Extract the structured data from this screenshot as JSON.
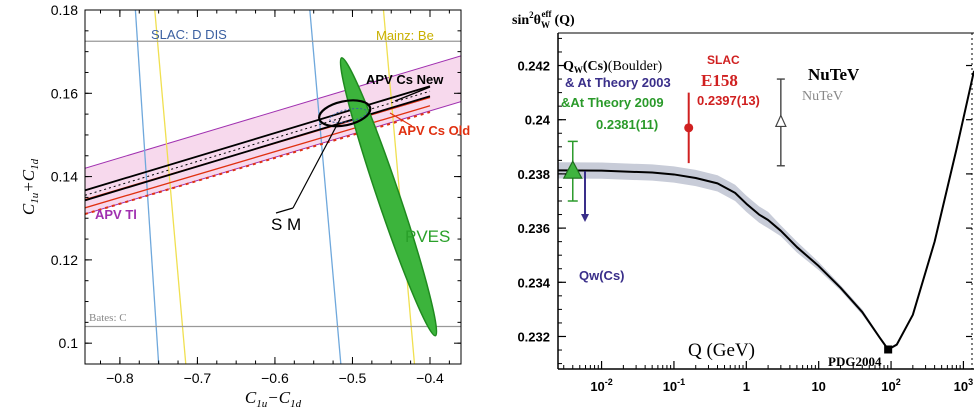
{
  "chart_data": [
    {
      "type": "line",
      "xlabel_main": "C",
      "xlabel_sub1": "1u",
      "xlabel_minus": "−C",
      "xlabel_sub2": "1d",
      "ylabel_main": "C",
      "ylabel_sub1": "1u",
      "ylabel_plus": "+C",
      "ylabel_sub2": "1d",
      "xlim": [
        -0.845,
        -0.36
      ],
      "ylim": [
        0.095,
        0.18
      ],
      "x_ticks": [
        -0.8,
        -0.7,
        -0.6,
        -0.5,
        -0.4
      ],
      "x_tick_labels": [
        "−0.8",
        "−0.7",
        "−0.6",
        "−0.5",
        "−0.4"
      ],
      "y_ticks": [
        0.1,
        0.12,
        0.14,
        0.16,
        0.18
      ],
      "y_tick_labels": [
        "0.1",
        "0.12",
        "0.14",
        "0.16",
        "0.18"
      ],
      "annotations": [
        {
          "text": "SLAC: D DIS",
          "color": "#3a5fa0"
        },
        {
          "text": "Mainz: Be",
          "color": "#c8b000"
        },
        {
          "text": "APV Cs New",
          "color": "#000000"
        },
        {
          "text": "APV Cs Old",
          "color": "#e03010"
        },
        {
          "text": "S M",
          "color": "#000000"
        },
        {
          "text": "PVES",
          "color": "#2aa02a"
        },
        {
          "text": "APV Tl",
          "color": "#a030b0"
        },
        {
          "text": "Bates: C",
          "color": "#888888"
        }
      ],
      "constraint_lines": [
        {
          "name": "SLAC: D DIS",
          "color": "#6fa8dc",
          "lines": [
            [
              [
                -0.78,
                0.18
              ],
              [
                -0.75,
                0.095
              ]
            ],
            [
              [
                -0.555,
                0.18
              ],
              [
                -0.515,
                0.095
              ]
            ]
          ]
        },
        {
          "name": "Mainz: Be",
          "color": "#f0e050",
          "lines": [
            [
              [
                -0.755,
                0.18
              ],
              [
                -0.715,
                0.095
              ]
            ],
            [
              [
                -0.46,
                0.18
              ],
              [
                -0.42,
                0.095
              ]
            ]
          ]
        },
        {
          "name": "Bates: C",
          "color": "#999999",
          "lines": [
            [
              [
                -0.845,
                0.1725
              ],
              [
                -0.36,
                0.1725
              ]
            ],
            [
              [
                -0.845,
                0.104
              ],
              [
                -0.36,
                0.104
              ]
            ]
          ]
        }
      ],
      "apv_bands": [
        {
          "name": "APV Tl band",
          "color": "#a030b0",
          "fill": "#f5cfe8",
          "center": [
            [
              -0.845,
              0.1365
            ],
            [
              -0.36,
              0.1635
            ]
          ],
          "half_width": 0.0055
        },
        {
          "name": "APV Cs New",
          "color": "#000000",
          "center": [
            [
              -0.845,
              0.1355
            ],
            [
              -0.4,
              0.1605
            ]
          ],
          "half_width": 0.0012
        },
        {
          "name": "APV Cs Old",
          "color": "#e03010",
          "center": [
            [
              -0.845,
              0.1335
            ],
            [
              -0.4,
              0.158
            ]
          ],
          "half_width": 0.001
        }
      ],
      "standard_model_point": [
        -0.514,
        0.1545
      ],
      "pves_ellipse": {
        "center": [
          -0.471,
          0.1328
        ],
        "semi_axis_long": 0.035,
        "semi_axis_short": 0.0022,
        "color": "#3cb43c"
      },
      "combined_ellipse": {
        "center": [
          -0.51,
          0.1552
        ],
        "rx": 0.022,
        "ry": 0.0028,
        "color": "#000000"
      }
    },
    {
      "type": "line",
      "ylabel": "sin²θ_W^eff (Q)",
      "ylabel_main": "sin",
      "ylabel_sup": "2",
      "ylabel_theta": "θ",
      "ylabel_sub": "W",
      "ylabel_eff": "eff",
      "ylabel_arg": "(Q)",
      "xlabel": "Q (GeV)",
      "xscale": "log",
      "xlim": [
        0.0025,
        1400
      ],
      "ylim": [
        0.2308,
        0.2432
      ],
      "x_tick_labels": [
        {
          "base": "10",
          "exp": "-2"
        },
        {
          "base": "10",
          "exp": "-1"
        },
        {
          "base": "1",
          "exp": ""
        },
        {
          "base": "10",
          "exp": ""
        },
        {
          "base": "10",
          "exp": "2"
        },
        {
          "base": "10",
          "exp": "3"
        }
      ],
      "x_ticks": [
        0.01,
        0.1,
        1,
        10,
        100,
        1000
      ],
      "y_ticks": [
        0.232,
        0.234,
        0.236,
        0.238,
        0.24,
        0.242
      ],
      "y_tick_labels": [
        "0.232",
        "0.234",
        "0.236",
        "0.238",
        "0.24",
        "0.242"
      ],
      "theory_curve": {
        "x": [
          0.0025,
          0.01,
          0.05,
          0.1,
          0.2,
          0.4,
          0.7,
          1.0,
          1.5,
          2.0,
          3,
          5,
          10,
          20,
          40,
          70,
          91.2,
          120,
          200,
          400,
          800,
          1400
        ],
        "y": [
          0.23813,
          0.23812,
          0.23805,
          0.23798,
          0.23785,
          0.23765,
          0.2373,
          0.2369,
          0.2365,
          0.2363,
          0.2359,
          0.2353,
          0.2346,
          0.2338,
          0.2329,
          0.23195,
          0.23152,
          0.2317,
          0.2328,
          0.2355,
          0.2389,
          0.2418
        ],
        "band_halfwidth": [
          0.0003,
          0.0003,
          0.0003,
          0.0003,
          0.0003,
          0.0003,
          0.0003,
          0.0003,
          0.0003,
          0.0003,
          0.0002,
          0.0002,
          0.00015,
          0.0001,
          0.0001,
          5e-05,
          5e-05,
          5e-05,
          5e-05,
          5e-05,
          5e-05,
          5e-05
        ],
        "color": "#000000",
        "band_color": "#c8ccd8"
      },
      "measurements": [
        {
          "label": "Q_W(Cs)(Boulder)",
          "x": 0.004,
          "y": 0.2381,
          "err": 0.0011,
          "color": "#2a9a2a",
          "marker": "triangle"
        },
        {
          "label": "Qw(Cs)",
          "x": 0.0059,
          "y_top": 0.2381,
          "y_bottom": 0.2363,
          "color": "#3a2f8a",
          "marker": "arrow-down"
        },
        {
          "label": "E158",
          "x": 0.16,
          "y": 0.2397,
          "err": 0.0013,
          "color": "#d02020",
          "marker": "circle"
        },
        {
          "label": "NuTeV",
          "x": 3.0,
          "y": 0.2399,
          "err": 0.0016,
          "color": "#444444",
          "marker": "arrow-up"
        },
        {
          "label": "PDG2004",
          "x": 91.2,
          "y": 0.23152,
          "color": "#000000",
          "marker": "square"
        }
      ],
      "annotations": [
        {
          "text": "(Boulder)",
          "color": "#000000"
        },
        {
          "text": "& At Theory 2003",
          "color": "#3a2f8a"
        },
        {
          "text": "&At Theory  2009",
          "color": "#2a9a2a"
        },
        {
          "text": "0.2381(11)",
          "color": "#2a9a2a"
        },
        {
          "text": "SLAC",
          "color": "#d02020"
        },
        {
          "text": "E158",
          "color": "#d02020"
        },
        {
          "text": "0.2397(13)",
          "color": "#d02020"
        },
        {
          "text": "NuTeV",
          "color": "#000000"
        },
        {
          "text": "NuTeV",
          "color": "#888888"
        },
        {
          "text": "Qw(Cs)",
          "color": "#3a2f8a"
        },
        {
          "text": "PDG2004",
          "color": "#000000"
        },
        {
          "text": "Q (GeV)",
          "color": "#000000"
        }
      ]
    }
  ],
  "labels": {
    "left": {
      "slac": "SLAC: D DIS",
      "mainz": "Mainz: Be",
      "cs_new": "APV Cs New",
      "cs_old": "APV Cs Old",
      "sm": "S M",
      "pves": "PVES",
      "tl": "APV Tl",
      "bates": "Bates: C"
    },
    "right": {
      "q_w": "Q",
      "q_w_sub": "W",
      "q_w_rest": "(Cs)",
      "boulder": "(Boulder)",
      "at2003": "& At Theory 2003",
      "at2009": "&At Theory  2009",
      "val_cs": "0.2381(11)",
      "slac": "SLAC",
      "e158": "E158",
      "val_e158": "0.2397(13)",
      "nutev_black": "NuTeV",
      "nutev_grey": "NuTeV",
      "qwcs": "Qw(Cs)",
      "pdg": "PDG2004",
      "qgev": "Q (GeV)"
    }
  }
}
